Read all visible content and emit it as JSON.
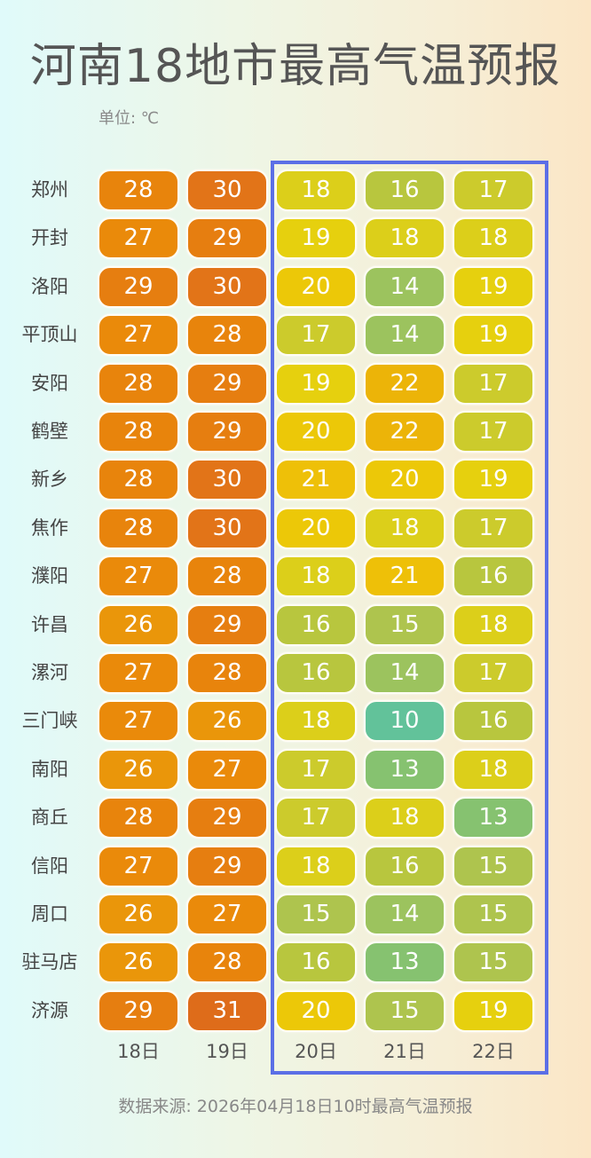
{
  "header": {
    "title": "河南18地市最高气温预报",
    "unit": "单位: ℃"
  },
  "footer": {
    "source": "数据来源: 2026年04月18日10时最高气温预报"
  },
  "highlight": {
    "color": "#5b6fe6",
    "columns": [
      "20日",
      "21日",
      "22日"
    ]
  },
  "color_scale": {
    "10": "#62c29a",
    "11": "#6fc28a",
    "12": "#7cc27c",
    "13": "#86c270",
    "14": "#9cc35e",
    "15": "#aec44e",
    "16": "#b8c63e",
    "17": "#cccb2c",
    "18": "#dccf1a",
    "19": "#e6d00e",
    "20": "#ecc808",
    "21": "#eec008",
    "22": "#ecb408",
    "23": "#eba808",
    "24": "#eaa008",
    "25": "#ea9a0a",
    "26": "#ea960a",
    "27": "#ea8a0a",
    "28": "#e8840c",
    "29": "#e67e10",
    "30": "#e27418",
    "31": "#de6c1a"
  },
  "chart_data": {
    "type": "heatmap",
    "title": "河南18地市最高气温预报",
    "unit": "℃",
    "categories": [
      "18日",
      "19日",
      "20日",
      "21日",
      "22日"
    ],
    "rows": [
      "郑州",
      "开封",
      "洛阳",
      "平顶山",
      "安阳",
      "鹤壁",
      "新乡",
      "焦作",
      "濮阳",
      "许昌",
      "漯河",
      "三门峡",
      "南阳",
      "商丘",
      "信阳",
      "周口",
      "驻马店",
      "济源"
    ],
    "values": [
      [
        28,
        30,
        18,
        16,
        17
      ],
      [
        27,
        29,
        19,
        18,
        18
      ],
      [
        29,
        30,
        20,
        14,
        19
      ],
      [
        27,
        28,
        17,
        14,
        19
      ],
      [
        28,
        29,
        19,
        22,
        17
      ],
      [
        28,
        29,
        20,
        22,
        17
      ],
      [
        28,
        30,
        21,
        20,
        19
      ],
      [
        28,
        30,
        20,
        18,
        17
      ],
      [
        27,
        28,
        18,
        21,
        16
      ],
      [
        26,
        29,
        16,
        15,
        18
      ],
      [
        27,
        28,
        16,
        14,
        17
      ],
      [
        27,
        26,
        18,
        10,
        16
      ],
      [
        26,
        27,
        17,
        13,
        18
      ],
      [
        28,
        29,
        17,
        18,
        13
      ],
      [
        27,
        29,
        18,
        16,
        15
      ],
      [
        26,
        27,
        15,
        14,
        15
      ],
      [
        26,
        28,
        16,
        13,
        15
      ],
      [
        29,
        31,
        20,
        15,
        19
      ]
    ],
    "highlighted_columns": [
      "20日",
      "21日",
      "22日"
    ],
    "source": "数据来源: 2026年04月18日10时最高气温预报"
  }
}
